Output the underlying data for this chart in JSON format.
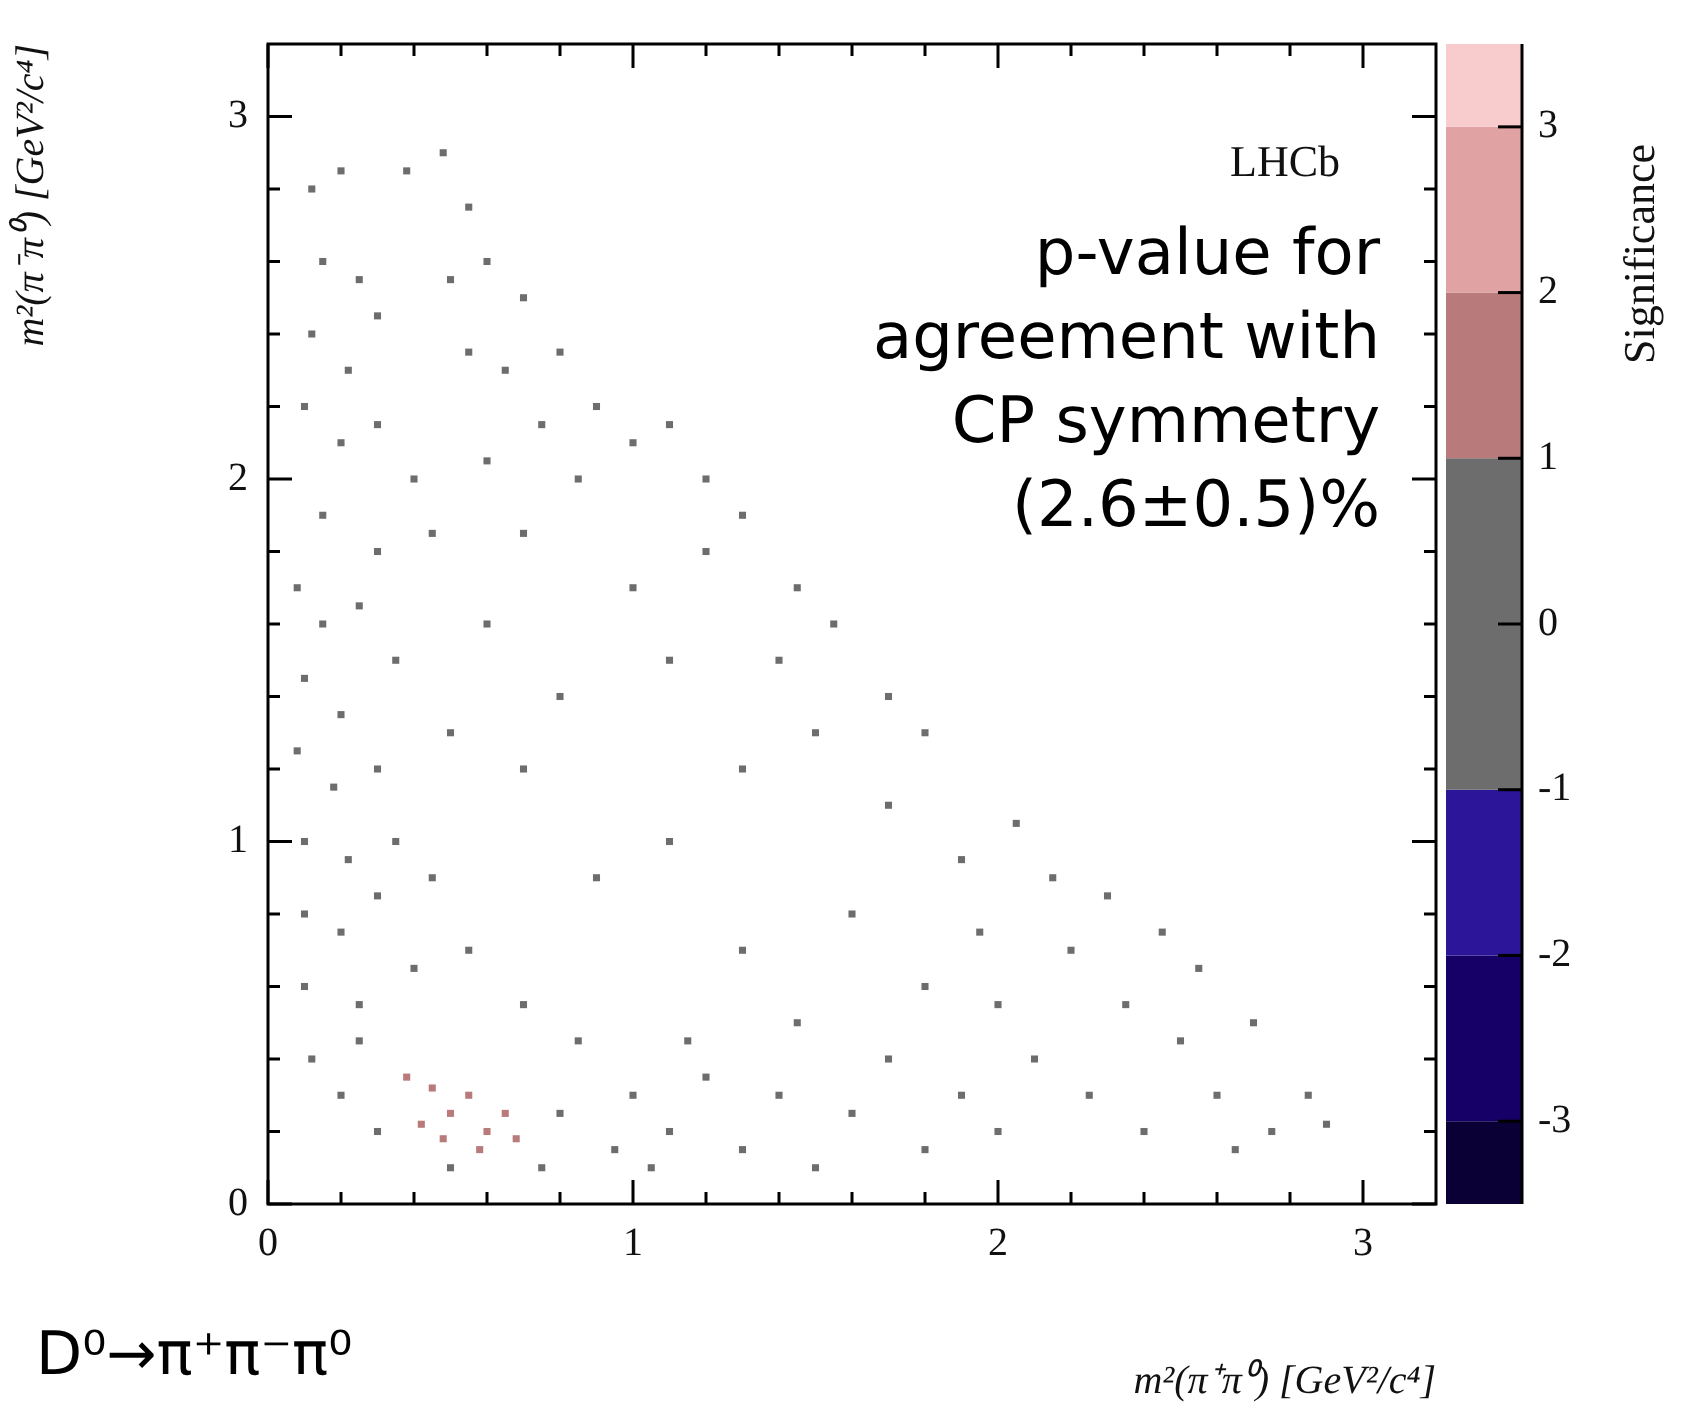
{
  "chart_data": {
    "type": "scatter",
    "xlabel": "m²(π⁺π⁰) [GeV²/c⁴]",
    "ylabel": "m²(π⁻π⁰) [GeV²/c⁴]",
    "clabel": "Significance",
    "annotations": [
      "LHCb",
      "p-value for agreement with CP symmetry (2.6±0.5)%",
      "D⁰→π⁺π⁻π⁰"
    ],
    "marker": "square",
    "legend": false,
    "xlim": [
      0,
      3.2
    ],
    "ylim": [
      0,
      3.2
    ],
    "xticks": [
      0,
      {
        "value": 0.2,
        "label": null
      },
      {
        "value": 0.4,
        "label": null
      },
      {
        "value": 0.6,
        "label": null
      },
      {
        "value": 0.8,
        "label": null
      },
      1,
      {
        "value": 1.2,
        "label": null
      },
      {
        "value": 1.4,
        "label": null
      },
      {
        "value": 1.6,
        "label": null
      },
      {
        "value": 1.8,
        "label": null
      },
      2,
      {
        "value": 2.2,
        "label": null
      },
      {
        "value": 2.4,
        "label": null
      },
      {
        "value": 2.6,
        "label": null
      },
      {
        "value": 2.8,
        "label": null
      },
      3
    ],
    "yticks": [
      0,
      {
        "value": 0.2,
        "label": null
      },
      {
        "value": 0.4,
        "label": null
      },
      {
        "value": 0.6,
        "label": null
      },
      {
        "value": 0.8,
        "label": null
      },
      1,
      {
        "value": 1.2,
        "label": null
      },
      {
        "value": 1.4,
        "label": null
      },
      {
        "value": 1.6,
        "label": null
      },
      {
        "value": 1.8,
        "label": null
      },
      2,
      {
        "value": 2.2,
        "label": null
      },
      {
        "value": 2.4,
        "label": null
      },
      {
        "value": 2.6,
        "label": null
      },
      {
        "value": 2.8,
        "label": null
      },
      3
    ],
    "clim": [
      -3.5,
      3.5
    ],
    "cticks": [
      -3,
      -2,
      -1,
      0,
      1,
      2,
      3
    ],
    "x": [
      0.12,
      0.2,
      0.15,
      0.25,
      0.12,
      0.22,
      0.3,
      0.1,
      0.2,
      0.3,
      0.4,
      0.5,
      0.55,
      0.6,
      0.7,
      0.55,
      0.65,
      0.8,
      0.75,
      0.9,
      0.6,
      0.85,
      1.0,
      0.45,
      0.7,
      0.15,
      0.3,
      0.38,
      0.48,
      0.08,
      0.15,
      0.25,
      0.1,
      0.2,
      0.35,
      0.08,
      0.18,
      0.3,
      0.1,
      0.22,
      0.35,
      0.1,
      0.2,
      0.3,
      0.45,
      0.1,
      0.25,
      0.4,
      0.55,
      0.12,
      0.2,
      0.3,
      0.7,
      0.85,
      0.8,
      0.95,
      0.75,
      0.5,
      0.25,
      0.38,
      0.45,
      0.5,
      0.42,
      0.55,
      0.6,
      0.65,
      0.58,
      0.48,
      0.68,
      1.0,
      1.1,
      1.2,
      1.3,
      1.4,
      1.5,
      1.6,
      1.7,
      1.8,
      1.9,
      2.0,
      1.15,
      1.05,
      1.45,
      2.0,
      2.1,
      2.2,
      2.25,
      2.35,
      2.4,
      2.5,
      2.55,
      2.6,
      2.7,
      2.75,
      2.85,
      2.9,
      2.3,
      2.15,
      2.45,
      2.65,
      1.95,
      0.6,
      0.8,
      1.0,
      1.2,
      1.4,
      1.3,
      1.1,
      0.9,
      1.5,
      1.7,
      1.6,
      1.3,
      1.8,
      1.1,
      0.7,
      0.5,
      1.9,
      1.2,
      1.45,
      1.7,
      1.1,
      1.3,
      1.55,
      1.8,
      2.05
    ],
    "values": [
      2.8,
      2.85,
      2.6,
      2.55,
      2.4,
      2.3,
      2.45,
      2.2,
      2.1,
      2.15,
      2.0,
      2.55,
      2.75,
      2.6,
      2.5,
      2.35,
      2.3,
      2.35,
      2.15,
      2.2,
      2.05,
      2.0,
      2.1,
      1.85,
      1.85,
      1.9,
      1.8,
      2.85,
      2.9,
      1.7,
      1.6,
      1.65,
      1.45,
      1.35,
      1.5,
      1.25,
      1.15,
      1.2,
      1.0,
      0.95,
      1.0,
      0.8,
      0.75,
      0.85,
      0.9,
      0.6,
      0.55,
      0.65,
      0.7,
      0.4,
      0.3,
      0.2,
      0.55,
      0.45,
      0.25,
      0.15,
      0.1,
      0.1,
      0.45,
      0.35,
      0.32,
      0.25,
      0.22,
      0.3,
      0.2,
      0.25,
      0.15,
      0.18,
      0.18,
      0.3,
      0.2,
      0.35,
      0.15,
      0.3,
      0.1,
      0.25,
      0.4,
      0.15,
      0.3,
      0.2,
      0.45,
      0.1,
      0.5,
      0.55,
      0.4,
      0.7,
      0.3,
      0.55,
      0.2,
      0.45,
      0.65,
      0.3,
      0.5,
      0.2,
      0.3,
      0.22,
      0.85,
      0.9,
      0.75,
      0.15,
      0.75,
      1.6,
      1.4,
      1.7,
      1.8,
      1.5,
      1.2,
      1.0,
      0.9,
      1.3,
      1.1,
      0.8,
      0.7,
      0.6,
      1.5,
      1.2,
      1.3,
      0.95,
      2.0,
      1.7,
      1.4,
      2.15,
      1.9,
      1.6,
      1.3,
      1.05
    ],
    "colors": [
      "#6d6d6d",
      "#6d6d6d",
      "#6d6d6d",
      "#6d6d6d",
      "#6d6d6d",
      "#6d6d6d",
      "#6d6d6d",
      "#6d6d6d",
      "#6d6d6d",
      "#6d6d6d",
      "#6d6d6d",
      "#6d6d6d",
      "#6d6d6d",
      "#6d6d6d",
      "#6d6d6d",
      "#6d6d6d",
      "#6d6d6d",
      "#6d6d6d",
      "#6d6d6d",
      "#6d6d6d",
      "#6d6d6d",
      "#6d6d6d",
      "#6d6d6d",
      "#6d6d6d",
      "#6d6d6d",
      "#6d6d6d",
      "#6d6d6d",
      "#6d6d6d",
      "#6d6d6d",
      "#6d6d6d",
      "#6d6d6d",
      "#6d6d6d",
      "#6d6d6d",
      "#6d6d6d",
      "#6d6d6d",
      "#6d6d6d",
      "#6d6d6d",
      "#6d6d6d",
      "#6d6d6d",
      "#6d6d6d",
      "#6d6d6d",
      "#6d6d6d",
      "#6d6d6d",
      "#6d6d6d",
      "#6d6d6d",
      "#6d6d6d",
      "#6d6d6d",
      "#6d6d6d",
      "#6d6d6d",
      "#6d6d6d",
      "#6d6d6d",
      "#6d6d6d",
      "#6d6d6d",
      "#6d6d6d",
      "#6d6d6d",
      "#6d6d6d",
      "#6d6d6d",
      "#6d6d6d",
      "#6d6d6d",
      "#b87a7a",
      "#b87a7a",
      "#b87a7a",
      "#b87a7a",
      "#b87a7a",
      "#b87a7a",
      "#b87a7a",
      "#b87a7a",
      "#b87a7a",
      "#b87a7a",
      "#6d6d6d",
      "#6d6d6d",
      "#6d6d6d",
      "#6d6d6d",
      "#6d6d6d",
      "#6d6d6d",
      "#6d6d6d",
      "#6d6d6d",
      "#6d6d6d",
      "#6d6d6d",
      "#6d6d6d",
      "#6d6d6d",
      "#6d6d6d",
      "#6d6d6d",
      "#6d6d6d",
      "#6d6d6d",
      "#6d6d6d",
      "#6d6d6d",
      "#6d6d6d",
      "#6d6d6d",
      "#6d6d6d",
      "#6d6d6d",
      "#6d6d6d",
      "#6d6d6d",
      "#6d6d6d",
      "#6d6d6d",
      "#6d6d6d",
      "#6d6d6d",
      "#6d6d6d",
      "#6d6d6d",
      "#6d6d6d",
      "#6d6d6d",
      "#6d6d6d",
      "#6d6d6d",
      "#6d6d6d",
      "#6d6d6d",
      "#6d6d6d",
      "#6d6d6d",
      "#6d6d6d",
      "#6d6d6d",
      "#6d6d6d",
      "#6d6d6d",
      "#6d6d6d",
      "#6d6d6d",
      "#6d6d6d",
      "#6d6d6d",
      "#6d6d6d",
      "#6d6d6d",
      "#6d6d6d",
      "#6d6d6d",
      "#6d6d6d",
      "#6d6d6d",
      "#6d6d6d",
      "#6d6d6d",
      "#6d6d6d",
      "#6d6d6d",
      "#6d6d6d"
    ]
  }
}
